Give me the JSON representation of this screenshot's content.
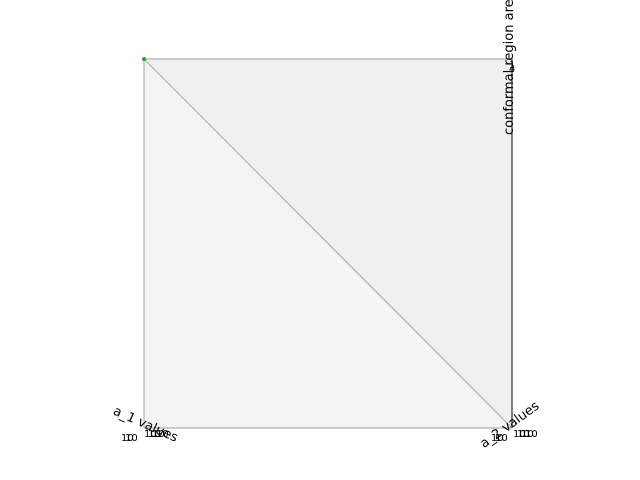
{
  "chart_data": {
    "type": "scatter",
    "projection": "3d",
    "view": "top-down",
    "xlabel": "a_1 values",
    "ylabel": "a_2 values",
    "zlabel": "conformal region area",
    "x_scale": "log",
    "y_scale": "log",
    "x_tick_labels": [
      "10",
      "10",
      "10",
      "10",
      "10",
      "10"
    ],
    "y_tick_labels": [
      "10",
      "10",
      "10",
      "10",
      "10",
      "10"
    ],
    "z_tick_labels": [
      "1",
      "4"
    ],
    "series": [
      {
        "color": "#2ca02c",
        "points": [
          {
            "x": 0.0,
            "y": 1.0
          }
        ]
      }
    ],
    "grid": false,
    "colors": {
      "pane_right": "#f0f0f0",
      "pane_left": "#f4f4f4",
      "pane_edge": "#b0b0b0",
      "axis_line": "#000000"
    }
  }
}
